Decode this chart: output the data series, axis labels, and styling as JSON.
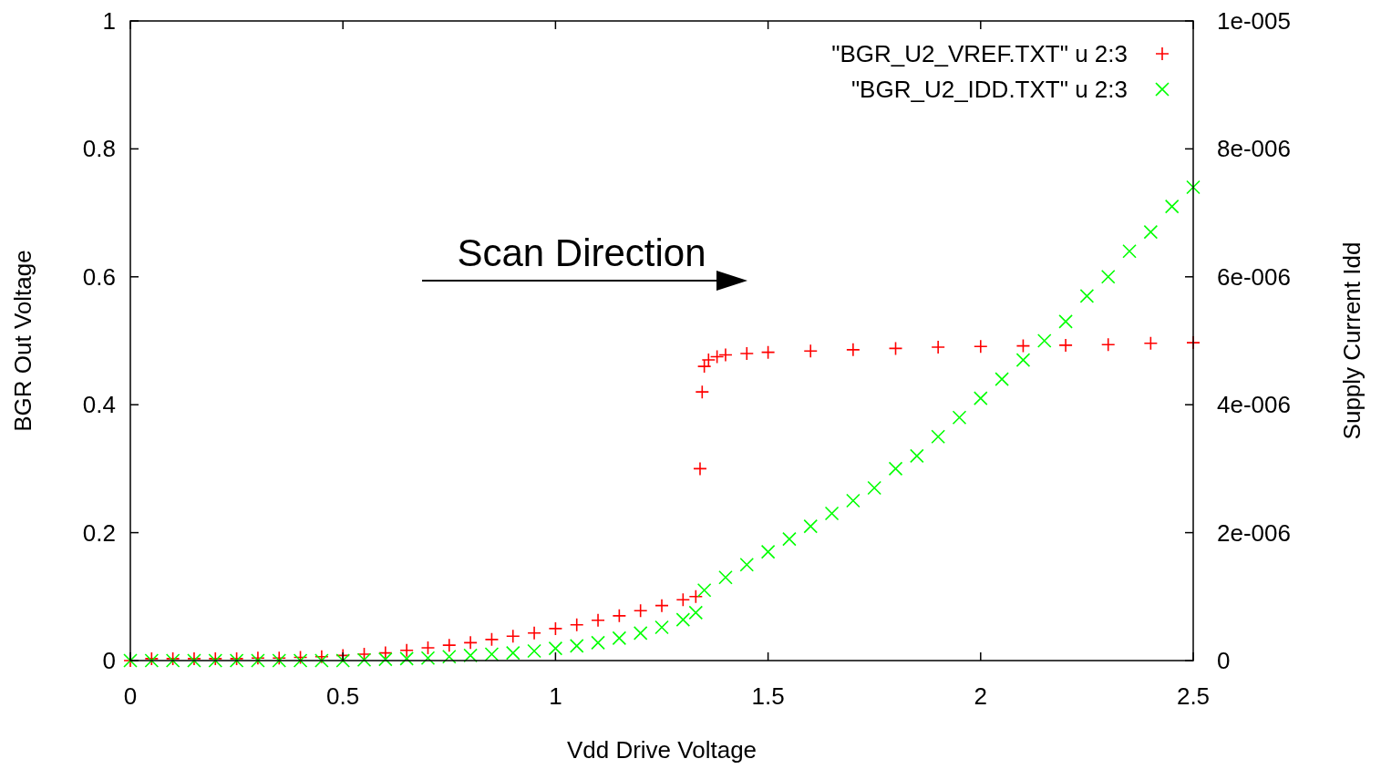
{
  "chart_data": {
    "type": "scatter",
    "xlabel": "Vdd Drive Voltage",
    "ylabel": "BGR Out Voltage",
    "y2label": "Supply Current Idd",
    "xlim": [
      0,
      2.5
    ],
    "xticks": [
      0,
      0.5,
      1,
      1.5,
      2,
      2.5
    ],
    "ylim": [
      0,
      1
    ],
    "yticks": [
      0,
      0.2,
      0.4,
      0.6,
      0.8,
      1
    ],
    "y2lim": [
      0,
      1e-05
    ],
    "y2ticks": [
      0,
      {
        "value": 2e-06,
        "label": "2e-006"
      },
      {
        "value": 4e-06,
        "label": "4e-006"
      },
      {
        "value": 6e-06,
        "label": "6e-006"
      },
      {
        "value": 8e-06,
        "label": "8e-006"
      },
      {
        "value": 1e-05,
        "label": "1e-005"
      }
    ],
    "legend": "top right",
    "grid": false,
    "annotations": [
      "Scan Direction"
    ],
    "series": [
      {
        "name": "\"BGR_U2_VREF.TXT\" u 2:3",
        "color": "#ff0000",
        "marker": "cross",
        "x": [
          0,
          0.05,
          0.1,
          0.15,
          0.2,
          0.25,
          0.3,
          0.35,
          0.4,
          0.45,
          0.5,
          0.55,
          0.6,
          0.65,
          0.7,
          0.75,
          0.8,
          0.85,
          0.9,
          0.95,
          1,
          1.05,
          1.1,
          1.15,
          1.2,
          1.25,
          1.3,
          1.33,
          1.34,
          1.345,
          1.35,
          1.36,
          1.38,
          1.4,
          1.45,
          1.5,
          1.6,
          1.7,
          1.8,
          1.9,
          2,
          2.1,
          2.2,
          2.3,
          2.4,
          2.5
        ],
        "values": [
          0,
          0.003,
          0.003,
          0.003,
          0.003,
          0.003,
          0.004,
          0.004,
          0.005,
          0.006,
          0.008,
          0.01,
          0.012,
          0.016,
          0.02,
          0.024,
          0.028,
          0.033,
          0.038,
          0.043,
          0.05,
          0.056,
          0.063,
          0.07,
          0.078,
          0.086,
          0.095,
          0.1,
          0.3,
          0.42,
          0.46,
          0.47,
          0.475,
          0.478,
          0.48,
          0.482,
          0.484,
          0.486,
          0.488,
          0.49,
          0.491,
          0.492,
          0.493,
          0.494,
          0.496,
          0.497
        ]
      },
      {
        "name": "\"BGR_U2_IDD.TXT\" u 2:3",
        "color": "#00ff00",
        "marker": "x",
        "axis": "y2",
        "x": [
          0,
          0.05,
          0.1,
          0.15,
          0.2,
          0.25,
          0.3,
          0.35,
          0.4,
          0.45,
          0.5,
          0.55,
          0.6,
          0.65,
          0.7,
          0.75,
          0.8,
          0.85,
          0.9,
          0.95,
          1,
          1.05,
          1.1,
          1.15,
          1.2,
          1.25,
          1.3,
          1.33,
          1.35,
          1.4,
          1.45,
          1.5,
          1.55,
          1.6,
          1.65,
          1.7,
          1.75,
          1.8,
          1.85,
          1.9,
          1.95,
          2,
          2.05,
          2.1,
          2.15,
          2.2,
          2.25,
          2.3,
          2.35,
          2.4,
          2.45,
          2.5
        ],
        "values": [
          0,
          0,
          0,
          0,
          0,
          0,
          0,
          0,
          0,
          0,
          0,
          1e-08,
          2e-08,
          3e-08,
          4e-08,
          6e-08,
          8e-08,
          1e-07,
          1.2e-07,
          1.5e-07,
          1.9e-07,
          2.3e-07,
          2.8e-07,
          3.5e-07,
          4.3e-07,
          5.2e-07,
          6.4e-07,
          7.5e-07,
          1.1e-06,
          1.3e-06,
          1.5e-06,
          1.7e-06,
          1.9e-06,
          2.1e-06,
          2.3e-06,
          2.5e-06,
          2.7e-06,
          3e-06,
          3.2e-06,
          3.5e-06,
          3.8e-06,
          4.1e-06,
          4.4e-06,
          4.7e-06,
          5e-06,
          5.3e-06,
          5.7e-06,
          6e-06,
          6.4e-06,
          6.7e-06,
          7.1e-06,
          7.4e-06
        ]
      }
    ]
  }
}
